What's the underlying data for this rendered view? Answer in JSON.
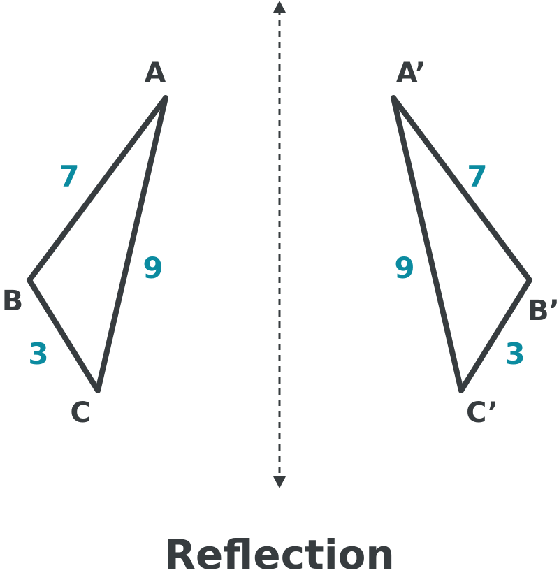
{
  "colors": {
    "stroke": "#373c3f",
    "label": "#373c3f",
    "measure": "#0b8ba0",
    "background": "#ffffff"
  },
  "original": {
    "vertices": {
      "a": "A",
      "b": "B",
      "c": "C"
    },
    "sides": {
      "ab": "7",
      "ac": "9",
      "bc": "3"
    }
  },
  "reflected": {
    "vertices": {
      "a": "A’",
      "b": "B’",
      "c": "C’"
    },
    "sides": {
      "ab": "7",
      "ac": "9",
      "bc": "3"
    }
  },
  "caption": "Reflection"
}
